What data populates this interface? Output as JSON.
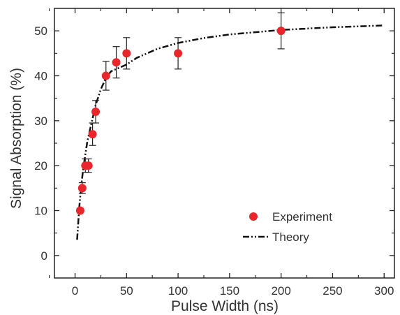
{
  "chart_data": {
    "type": "scatter",
    "xlabel": "Pulse Width (ns)",
    "ylabel": "Signal Absorption (%)",
    "xlim": [
      -20,
      310
    ],
    "ylim": [
      -5,
      55
    ],
    "xticks": [
      0,
      50,
      100,
      150,
      200,
      250,
      300
    ],
    "yticks": [
      0,
      10,
      20,
      30,
      40,
      50
    ],
    "grid": false,
    "legend_position": "bottom-right",
    "series": [
      {
        "name": "Experiment",
        "kind": "points-with-error-bars",
        "color": "#e8262b",
        "x": [
          5,
          7,
          10,
          13,
          17,
          20,
          30,
          40,
          50,
          100,
          200
        ],
        "y": [
          10,
          15,
          20,
          20,
          27,
          32,
          40,
          43,
          45,
          45,
          50
        ],
        "err": [
          0.3,
          1.2,
          1.5,
          1.5,
          2.5,
          2.5,
          3.2,
          3.5,
          3.5,
          3.5,
          4
        ]
      },
      {
        "name": "Theory",
        "kind": "dash-dot-line",
        "color": "#111111",
        "x": [
          2,
          4,
          6,
          8,
          10,
          12,
          15,
          18,
          20,
          25,
          30,
          35,
          40,
          50,
          60,
          80,
          100,
          125,
          150,
          200,
          250,
          300
        ],
        "y": [
          3.5,
          10.5,
          15.5,
          19.5,
          22.5,
          25.5,
          28.5,
          31.5,
          33.5,
          37,
          39.5,
          41,
          41.5,
          42.5,
          44,
          46,
          47.3,
          48.4,
          49.2,
          50.2,
          50.8,
          51.2
        ]
      }
    ]
  }
}
